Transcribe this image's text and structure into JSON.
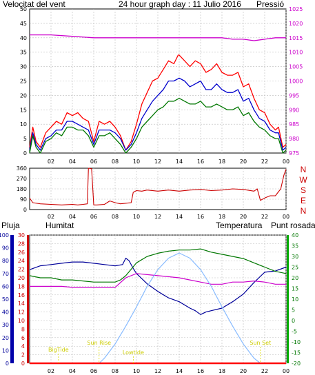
{
  "header": {
    "wind_label": "Velocitat del vent",
    "title": "24 hour graph day : 11 Julio 2016",
    "pressure_label": "Pressió"
  },
  "legend_lower": {
    "rain_label": "Pluja",
    "humidity_label": "Humitat",
    "temperature_label": "Temperatura",
    "dewpoint_label": "Punt rosada"
  },
  "compass_letters": [
    "N",
    "W",
    "S",
    "E",
    "N"
  ],
  "sun_labels": {
    "bigtide": "BigTide",
    "sunrise": "Sun Rise",
    "lowtide": "Lowtide",
    "sunset": "Sun Set"
  },
  "colors": {
    "wind_gust": "#ff0000",
    "wind_avg": "#0000cc",
    "wind_speed": "#007700",
    "pressure": "#cc00cc",
    "direction": "#cc0000",
    "temperature": "#007700",
    "humidity": "#000099",
    "dewpoint": "#cc00cc",
    "rain": "#ff0000",
    "solar": "#88bbff",
    "grid": "#bbbbbb",
    "frame": "#000000"
  },
  "chart_data": [
    {
      "type": "line",
      "title": "24 hour graph day : 11 Julio 2016",
      "x_ticks": [
        "02",
        "04",
        "06",
        "08",
        "10",
        "12",
        "14",
        "16",
        "18",
        "20",
        "22",
        "00"
      ],
      "xlim": [
        0,
        24
      ],
      "left_axis": {
        "label": "Velocitat del vent",
        "ticks": [
          "0",
          "5",
          "10",
          "15",
          "20",
          "25",
          "30",
          "35",
          "40",
          "45",
          "50"
        ],
        "ylim": [
          0,
          50
        ]
      },
      "right_axis": {
        "label": "Pressió",
        "ticks": [
          "975",
          "980",
          "985",
          "990",
          "995",
          "1000",
          "1005",
          "1010",
          "1015",
          "1020",
          "1025"
        ],
        "ylim": [
          975,
          1025
        ]
      },
      "series": [
        {
          "key": "gust",
          "axis": "left",
          "x": [
            0,
            0.3,
            0.6,
            1,
            1.5,
            2,
            2.5,
            3,
            3.5,
            4,
            4.5,
            5,
            5.5,
            6,
            6.5,
            7,
            7.5,
            8,
            8.5,
            9,
            9.5,
            10,
            10.5,
            11,
            11.5,
            12,
            12.5,
            13,
            13.5,
            13.9,
            14,
            14.5,
            15,
            15.5,
            16,
            16.5,
            17,
            17.5,
            18,
            18.5,
            19,
            19.5,
            20,
            20.5,
            21,
            21.5,
            22,
            22.5,
            23,
            23.3,
            23.7,
            24
          ],
          "values": [
            2,
            9,
            4,
            2,
            7,
            9,
            11,
            10,
            14,
            13,
            14,
            12,
            11,
            4,
            11,
            10,
            11,
            9,
            6,
            1,
            4,
            10,
            17,
            21,
            25,
            26,
            29,
            32,
            31,
            34,
            34,
            32,
            30,
            32,
            31,
            28,
            29,
            31,
            28,
            27,
            27,
            28,
            23,
            24,
            19,
            15,
            14,
            10,
            8,
            9,
            2,
            3
          ]
        },
        {
          "key": "average",
          "axis": "left",
          "x": [
            0,
            0.3,
            0.6,
            1,
            1.5,
            2,
            2.5,
            3,
            3.5,
            4,
            4.5,
            5,
            5.5,
            6,
            6.5,
            7,
            7.5,
            8,
            8.5,
            9,
            9.5,
            10,
            10.5,
            11,
            11.5,
            12,
            12.5,
            13,
            13.5,
            14,
            14.5,
            15,
            15.5,
            16,
            16.5,
            17,
            17.5,
            18,
            18.5,
            19,
            19.5,
            20,
            20.5,
            21,
            21.5,
            22,
            22.5,
            23,
            23.3,
            23.7,
            24
          ],
          "values": [
            1,
            7,
            3,
            1,
            5,
            6,
            8,
            8,
            11,
            11,
            10,
            9,
            8,
            3,
            8,
            8,
            8,
            7,
            5,
            1,
            3,
            7,
            12,
            15,
            18,
            20,
            22,
            25,
            25,
            26,
            25,
            23,
            24,
            25,
            22,
            22,
            24,
            22,
            21,
            21,
            22,
            18,
            19,
            15,
            12,
            11,
            8,
            7,
            7,
            1,
            2
          ]
        },
        {
          "key": "speed",
          "axis": "left",
          "x": [
            0,
            0.3,
            0.6,
            1,
            1.5,
            2,
            2.5,
            3,
            3.5,
            4,
            4.5,
            5,
            5.5,
            6,
            6.5,
            7,
            7.5,
            8,
            8.5,
            9,
            9.5,
            10,
            10.5,
            11,
            11.5,
            12,
            12.5,
            13,
            13.5,
            14,
            14.5,
            15,
            15.5,
            16,
            16.5,
            17,
            17.5,
            18,
            18.5,
            19,
            19.5,
            20,
            20.5,
            21,
            21.5,
            22,
            22.5,
            23,
            23.3,
            23.7,
            24
          ],
          "values": [
            0,
            6,
            2,
            0,
            4,
            5,
            7,
            6,
            9,
            9,
            8,
            8,
            6,
            2,
            6,
            6,
            7,
            5,
            3,
            0,
            2,
            5,
            9,
            11,
            13,
            15,
            16,
            18,
            18,
            19,
            18,
            17,
            17,
            18,
            16,
            16,
            17,
            16,
            15,
            15,
            16,
            13,
            14,
            11,
            9,
            8,
            6,
            5,
            5,
            0,
            1
          ]
        },
        {
          "key": "pressure",
          "axis": "right",
          "x": [
            0,
            2,
            4,
            6,
            8,
            10,
            12,
            14,
            16,
            18,
            19,
            20,
            21,
            22,
            23,
            24
          ],
          "values": [
            1016,
            1016,
            1015.5,
            1015,
            1015,
            1015,
            1015,
            1015,
            1015,
            1015,
            1014.5,
            1014.5,
            1014,
            1014.5,
            1015,
            1015
          ]
        }
      ]
    },
    {
      "type": "line",
      "title": "",
      "x_ticks": [
        "02",
        "04",
        "06",
        "08",
        "10",
        "12",
        "14",
        "16",
        "18",
        "20",
        "22",
        "00"
      ],
      "xlim": [
        0,
        24
      ],
      "left_axis": {
        "ticks": [
          "0",
          "90",
          "180",
          "270",
          "360"
        ],
        "ylim": [
          0,
          360
        ]
      },
      "compass": [
        "N",
        "W",
        "S",
        "E",
        "N"
      ],
      "series": [
        {
          "key": "direction",
          "x": [
            0,
            0.3,
            1,
            2,
            3,
            4,
            4.5,
            5,
            5.4,
            5.5,
            5.8,
            6,
            6.3,
            7,
            7.5,
            8,
            8.5,
            9,
            9.5,
            9.7,
            10,
            10.5,
            11,
            12,
            13,
            14,
            15,
            16,
            17,
            18,
            19,
            20,
            21,
            21.3,
            21.6,
            22,
            22.5,
            23,
            23.5,
            23.8,
            24
          ],
          "values": [
            100,
            60,
            50,
            45,
            40,
            45,
            40,
            45,
            50,
            360,
            355,
            40,
            40,
            45,
            75,
            60,
            50,
            55,
            60,
            150,
            165,
            160,
            170,
            160,
            170,
            160,
            170,
            175,
            165,
            170,
            180,
            175,
            160,
            180,
            80,
            100,
            120,
            120,
            180,
            300,
            350
          ]
        }
      ]
    },
    {
      "type": "line",
      "title": "",
      "x_ticks": [
        "02",
        "04",
        "06",
        "08",
        "10",
        "12",
        "14",
        "16",
        "18",
        "20",
        "22",
        "00"
      ],
      "xlim": [
        0,
        24
      ],
      "axes": {
        "humidity": {
          "label": "Humitat",
          "ticks": [
            "0",
            "10",
            "20",
            "30",
            "40",
            "50",
            "60",
            "70",
            "80",
            "90",
            "100"
          ],
          "ylim": [
            0,
            100
          ]
        },
        "rain": {
          "label": "Pluja",
          "ticks": [
            "0",
            "2",
            "4",
            "6",
            "8",
            "10",
            "12",
            "14",
            "16",
            "18",
            "20",
            "22",
            "24",
            "26",
            "28",
            "30"
          ],
          "ylim": [
            0,
            30
          ]
        },
        "temperature": {
          "label": "Temperatura",
          "ticks": [
            "-20",
            "-15",
            "-10",
            "-5",
            "0",
            "5",
            "10",
            "15",
            "20",
            "25",
            "30",
            "35",
            "40"
          ],
          "ylim": [
            -20,
            40
          ]
        }
      },
      "series": [
        {
          "key": "humidity",
          "axis": "humidity",
          "x": [
            0,
            1,
            2,
            3,
            4,
            5,
            6,
            7,
            8,
            8.7,
            9,
            9.3,
            9.7,
            10,
            11,
            12,
            13,
            14,
            15,
            15.5,
            16,
            16.5,
            17,
            18,
            19,
            20,
            21,
            22,
            23,
            24
          ],
          "values": [
            73,
            76,
            77,
            78,
            79,
            79,
            78,
            77,
            76,
            77,
            82,
            80,
            74,
            70,
            62,
            56,
            51,
            48,
            43,
            41,
            38,
            40,
            41,
            43,
            48,
            54,
            63,
            71,
            72,
            75
          ]
        },
        {
          "key": "temperature",
          "axis": "temperature",
          "x": [
            0,
            1,
            2,
            3,
            4,
            5,
            6,
            7,
            8,
            8.5,
            9,
            9.5,
            10,
            11,
            12,
            13,
            14,
            15,
            16,
            17,
            18,
            19,
            20,
            21,
            22,
            23,
            24
          ],
          "values": [
            21,
            20,
            20,
            19,
            19,
            18.5,
            18,
            18,
            18,
            19,
            21,
            24,
            27,
            30,
            31.5,
            32.5,
            33,
            33,
            33.5,
            32,
            31,
            30,
            29,
            27,
            25,
            23,
            22
          ]
        },
        {
          "key": "dewpoint",
          "axis": "temperature",
          "x": [
            0,
            1,
            2,
            3,
            4,
            5,
            6,
            7,
            8,
            9,
            10,
            11,
            12,
            13,
            14,
            15,
            16,
            17,
            18,
            19,
            20,
            21,
            22,
            23,
            24
          ],
          "values": [
            16,
            16,
            16,
            16,
            15.5,
            15.5,
            15.5,
            15.5,
            15.5,
            20,
            22,
            21.5,
            21,
            20.5,
            20,
            19,
            18,
            17,
            17,
            18,
            18,
            18.5,
            18,
            17,
            17
          ]
        },
        {
          "key": "solar",
          "axis": "humidity",
          "x": [
            6.5,
            7,
            8,
            9,
            10,
            11,
            12,
            13,
            14,
            15,
            16,
            17,
            18,
            19,
            20,
            21,
            21.6
          ],
          "values": [
            0,
            4,
            15,
            29,
            44,
            60,
            73,
            82,
            86,
            82,
            73,
            60,
            44,
            29,
            15,
            4,
            0
          ]
        },
        {
          "key": "rain",
          "axis": "rain",
          "x": [
            0,
            24
          ],
          "values": [
            0,
            0
          ]
        }
      ],
      "markers": [
        {
          "label": "BigTide",
          "x": 2.7
        },
        {
          "label": "Sun Rise",
          "x": 6.5
        },
        {
          "label": "Lowtide",
          "x": 9.7
        },
        {
          "label": "Sun Set",
          "x": 21.6
        }
      ]
    }
  ]
}
